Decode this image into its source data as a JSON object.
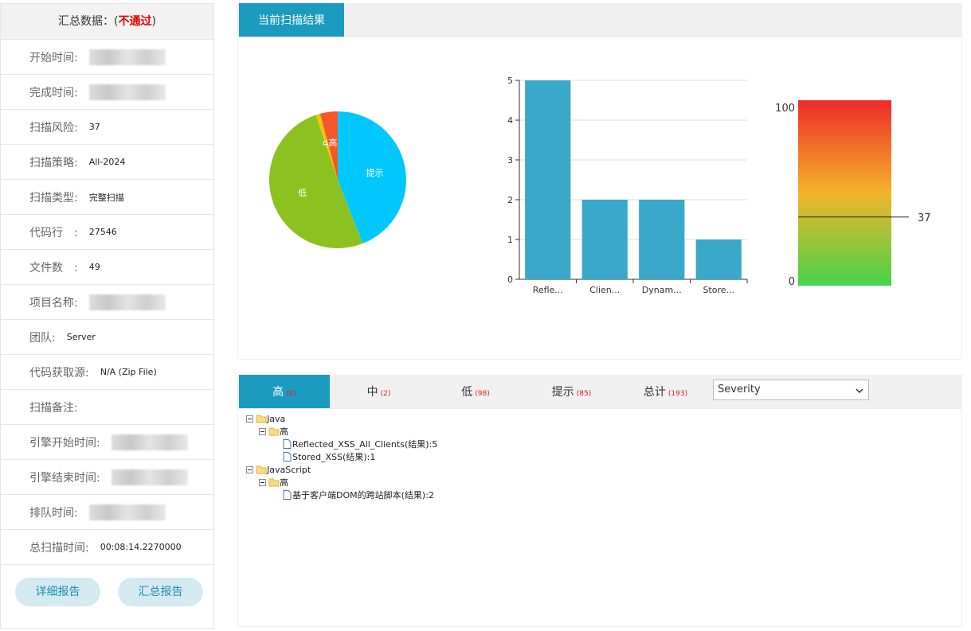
{
  "summary": {
    "title_before": "汇总数据：(",
    "status": "不通过",
    "title_after": ")",
    "rows": [
      {
        "label": "开始时间:",
        "blurred": true
      },
      {
        "label": "完成时间:",
        "blurred": true
      },
      {
        "label": "扫描风险:",
        "value": "37"
      },
      {
        "label": "扫描策略:",
        "value": "All-2024"
      },
      {
        "label": "扫描类型:",
        "value": "完整扫描"
      },
      {
        "label": "代码行　:",
        "value": "27546"
      },
      {
        "label": "文件数　:",
        "value": "49"
      },
      {
        "label": "项目名称:",
        "blurred": true
      },
      {
        "label": "团队:",
        "value": "Server"
      },
      {
        "label": "代码获取源:",
        "value": "N/A (Zip File)"
      },
      {
        "label": "扫描备注:"
      },
      {
        "label": "引擎开始时间:",
        "blurred": true
      },
      {
        "label": "引擎结束时间:",
        "blurred": true
      },
      {
        "label": "排队时间:",
        "blurred": true
      },
      {
        "label": "总扫描时间:",
        "value": "00:08:14.2270000"
      }
    ]
  },
  "buttons": [
    "详细报告",
    "汇总报告"
  ],
  "result_tab": "当前扫描结果",
  "chart_data": [
    {
      "type": "pie",
      "categories": [
        "提示",
        "低",
        "中",
        "高"
      ],
      "values": [
        85,
        98,
        2,
        8
      ],
      "colors": [
        "#00c8ff",
        "#8cc21f",
        "#f2c500",
        "#f4572a"
      ]
    },
    {
      "type": "bar",
      "categories": [
        "Refle...",
        "Clien...",
        "Dynam...",
        "Store..."
      ],
      "values": [
        5,
        2,
        2,
        1
      ],
      "color": "#3aa8c8",
      "ylim": [
        0,
        5
      ],
      "yticks": [
        0,
        1,
        2,
        3,
        4,
        5
      ],
      "grid": true
    },
    {
      "type": "gauge",
      "value": 37,
      "ylim": [
        0,
        100
      ],
      "yticks": [
        0,
        100
      ],
      "colors": [
        "#44d44a",
        "#f4b42a",
        "#ee2a2a"
      ]
    }
  ],
  "severity_tabs": [
    {
      "name": "高",
      "count": "(8)"
    },
    {
      "name": "中",
      "count": "(2)"
    },
    {
      "name": "低",
      "count": "(98)"
    },
    {
      "name": "提示",
      "count": "(85)"
    },
    {
      "name": "总计",
      "count": "(193)"
    }
  ],
  "filter": "Severity",
  "tree": [
    {
      "label": "Java",
      "children": [
        {
          "label": "高",
          "children": [
            {
              "label": "Reflected_XSS_All_Clients(结果):5"
            },
            {
              "label": "Stored_XSS(结果):1"
            }
          ]
        }
      ]
    },
    {
      "label": "JavaScript",
      "children": [
        {
          "label": "高",
          "children": [
            {
              "label": "基于客户端DOM的跨站脚本(结果):2"
            }
          ]
        }
      ]
    }
  ]
}
